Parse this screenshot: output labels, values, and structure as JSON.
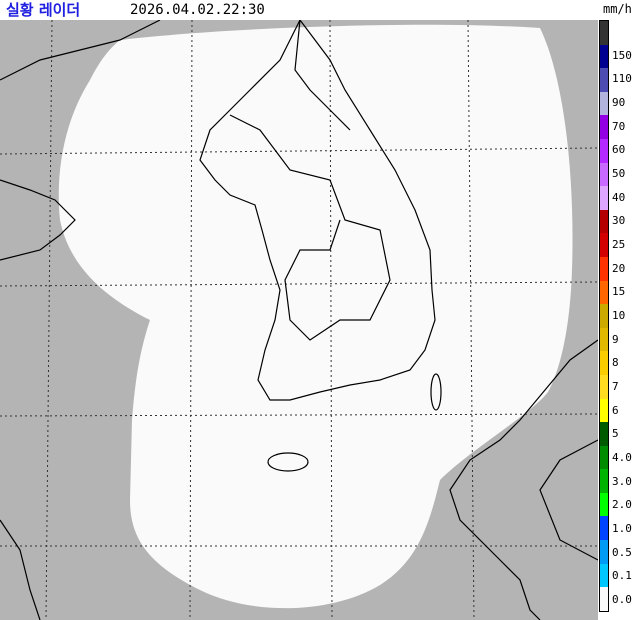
{
  "header": {
    "title": "실황 레이더",
    "datetime": "2026.04.02.22:30"
  },
  "legend": {
    "unit": "mm/h",
    "colors": [
      "#333333",
      "#000090",
      "#4c4cb3",
      "#b3b4de",
      "#9300e4",
      "#b329ff",
      "#c969ff",
      "#dfa6ff",
      "#b40000",
      "#d20000",
      "#ff3300",
      "#ff6600",
      "#ccaa00",
      "#e0b900",
      "#f9cd00",
      "#ffdc1f",
      "#ffff00",
      "#005a00",
      "#008c00",
      "#00b300",
      "#00ff00",
      "#0044ff",
      "#009bf5",
      "#00c8ff",
      "#fafafa"
    ],
    "labels": [
      "150",
      "110",
      "90",
      "70",
      "60",
      "50",
      "40",
      "30",
      "25",
      "20",
      "15",
      "10",
      "9",
      "8",
      "7",
      "6",
      "5",
      "4.0",
      "3.0",
      "2.0",
      "1.0",
      "0.5",
      "0.1",
      "0.0"
    ]
  },
  "map": {
    "background": "#b4b4b4",
    "coverage": "#fafafa",
    "coastline": "#000000"
  }
}
